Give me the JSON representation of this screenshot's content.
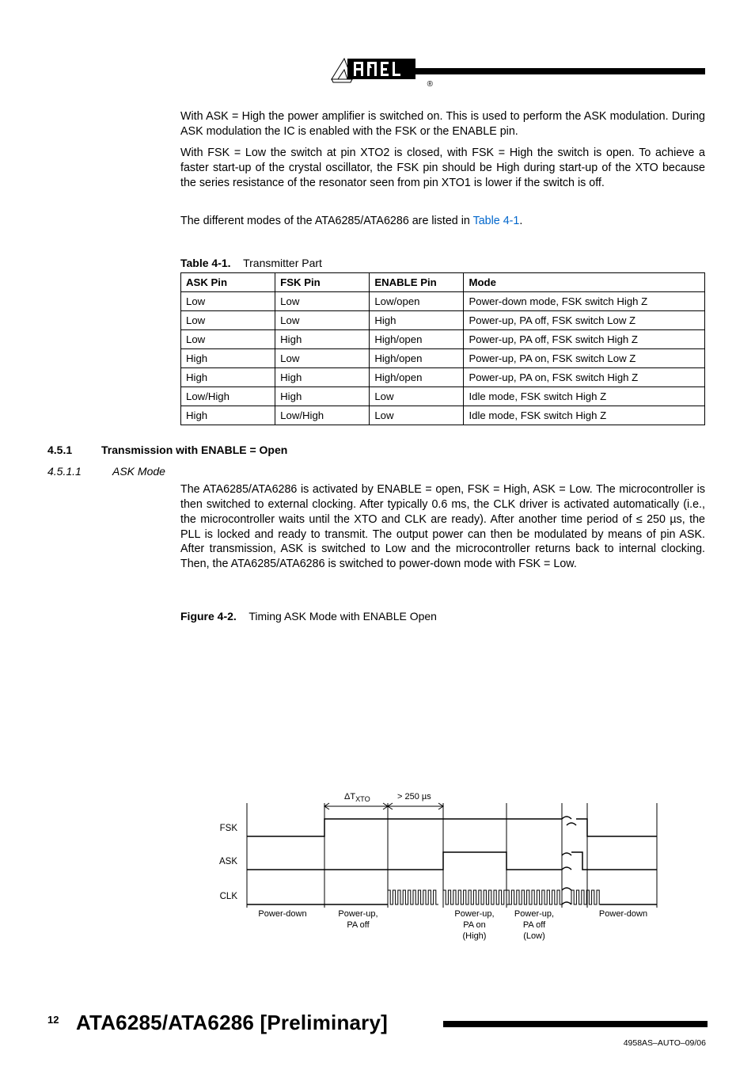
{
  "logo": {
    "reg_mark": "®"
  },
  "paragraphs": {
    "p1": "With ASK = High the power amplifier is switched on. This is used to perform the ASK modulation. During ASK modulation the IC is enabled with the FSK or the ENABLE pin.",
    "p2": "With FSK = Low the switch at pin XTO2 is closed, with FSK = High the switch is open. To achieve a faster start-up of the crystal oscillator, the FSK pin should be High during start-up of the XTO because the series resistance of the resonator seen from pin XTO1 is lower if the switch is off.",
    "p3_pre": "The different modes of the ATA6285/ATA6286 are listed in ",
    "p3_link": "Table 4-1",
    "p3_post": ".",
    "p4": "The ATA6285/ATA6286 is activated by ENABLE = open, FSK = High, ASK = Low. The microcontroller is then switched to external clocking. After typically 0.6 ms, the CLK driver is activated automatically (i.e., the microcontroller waits until the XTO and CLK are ready). After another time period of ≤ 250 µs, the PLL is locked and ready to transmit. The output power can then be modulated by means of pin ASK. After transmission, ASK is switched to Low and the microcontroller returns back to internal clocking. Then, the ATA6285/ATA6286 is switched to power-down mode with FSK = Low."
  },
  "table": {
    "label_bold": "Table 4-1.",
    "label_caption": "Transmitter Part",
    "headers": [
      "ASK Pin",
      "FSK Pin",
      "ENABLE Pin",
      "Mode"
    ],
    "rows": [
      [
        "Low",
        "Low",
        "Low/open",
        "Power-down mode, FSK switch High Z"
      ],
      [
        "Low",
        "Low",
        "High",
        "Power-up, PA off, FSK switch Low Z"
      ],
      [
        "Low",
        "High",
        "High/open",
        "Power-up, PA off, FSK switch High Z"
      ],
      [
        "High",
        "Low",
        "High/open",
        "Power-up, PA on, FSK switch Low Z"
      ],
      [
        "High",
        "High",
        "High/open",
        "Power-up, PA on, FSK switch High Z"
      ],
      [
        "Low/High",
        "High",
        "Low",
        "Idle mode, FSK switch High Z"
      ],
      [
        "High",
        "Low/High",
        "Low",
        "Idle mode, FSK switch High Z"
      ]
    ],
    "col_widths": [
      "18%",
      "18%",
      "18%",
      "46%"
    ]
  },
  "sections": {
    "s1_num": "4.5.1",
    "s1_title": "Transmission with ENABLE = Open",
    "s2_num": "4.5.1.1",
    "s2_title": "ASK Mode"
  },
  "figure": {
    "label_bold": "Figure 4-2.",
    "label_caption": "Timing ASK Mode with ENABLE Open",
    "signals": {
      "fsk": "FSK",
      "ask": "ASK",
      "clk": "CLK"
    },
    "top_delta": "ΔT",
    "top_delta_sub": "XTO",
    "top_250": "> 250 µs",
    "states": {
      "s1": "Power-down",
      "s2a": "Power-up,",
      "s2b": "PA off",
      "s3a": "Power-up,",
      "s3b": "PA on",
      "s3c": "(High)",
      "s4a": "Power-up,",
      "s4b": "PA off",
      "s4c": "(Low)",
      "s5": "Power-down"
    }
  },
  "footer": {
    "page": "12",
    "title": "ATA6285/ATA6286 [Preliminary]",
    "docid": "4958AS–AUTO–09/06"
  },
  "colors": {
    "text": "#000000",
    "link": "#0066cc",
    "rule": "#000000",
    "bg": "#ffffff"
  }
}
